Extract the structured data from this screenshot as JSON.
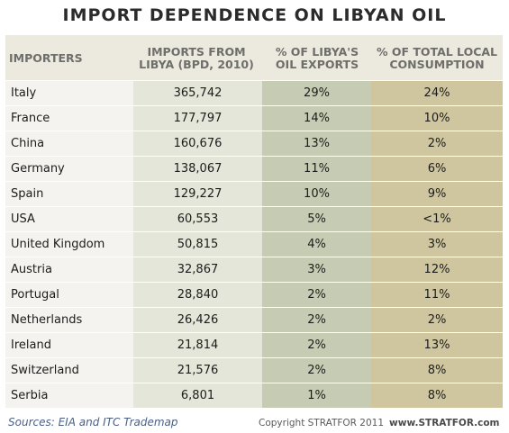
{
  "title": "IMPORT DEPENDENCE ON LIBYAN OIL",
  "footer": {
    "sources": "Sources: EIA and ITC Trademap",
    "copyright": "Copyright STRATFOR 2011",
    "website": "www.STRATFOR.com"
  },
  "chart_data": {
    "type": "table",
    "title": "IMPORT DEPENDENCE ON LIBYAN OIL",
    "columns": [
      "IMPORTERS",
      "IMPORTS FROM\nLIBYA (BPD, 2010)",
      "% OF LIBYA'S\nOIL EXPORTS",
      "% OF TOTAL LOCAL\nCONSUMPTION"
    ],
    "rows": [
      [
        "Italy",
        "365,742",
        "29%",
        "24%"
      ],
      [
        "France",
        "177,797",
        "14%",
        "10%"
      ],
      [
        "China",
        "160,676",
        "13%",
        "2%"
      ],
      [
        "Germany",
        "138,067",
        "11%",
        "6%"
      ],
      [
        "Spain",
        "129,227",
        "10%",
        "9%"
      ],
      [
        "USA",
        "60,553",
        "5%",
        "<1%"
      ],
      [
        "United Kingdom",
        "50,815",
        "4%",
        "3%"
      ],
      [
        "Austria",
        "32,867",
        "3%",
        "12%"
      ],
      [
        "Portugal",
        "28,840",
        "2%",
        "11%"
      ],
      [
        "Netherlands",
        "26,426",
        "2%",
        "2%"
      ],
      [
        "Ireland",
        "21,814",
        "2%",
        "13%"
      ],
      [
        "Switzerland",
        "21,576",
        "2%",
        "8%"
      ],
      [
        "Serbia",
        "6,801",
        "1%",
        "8%"
      ]
    ]
  }
}
